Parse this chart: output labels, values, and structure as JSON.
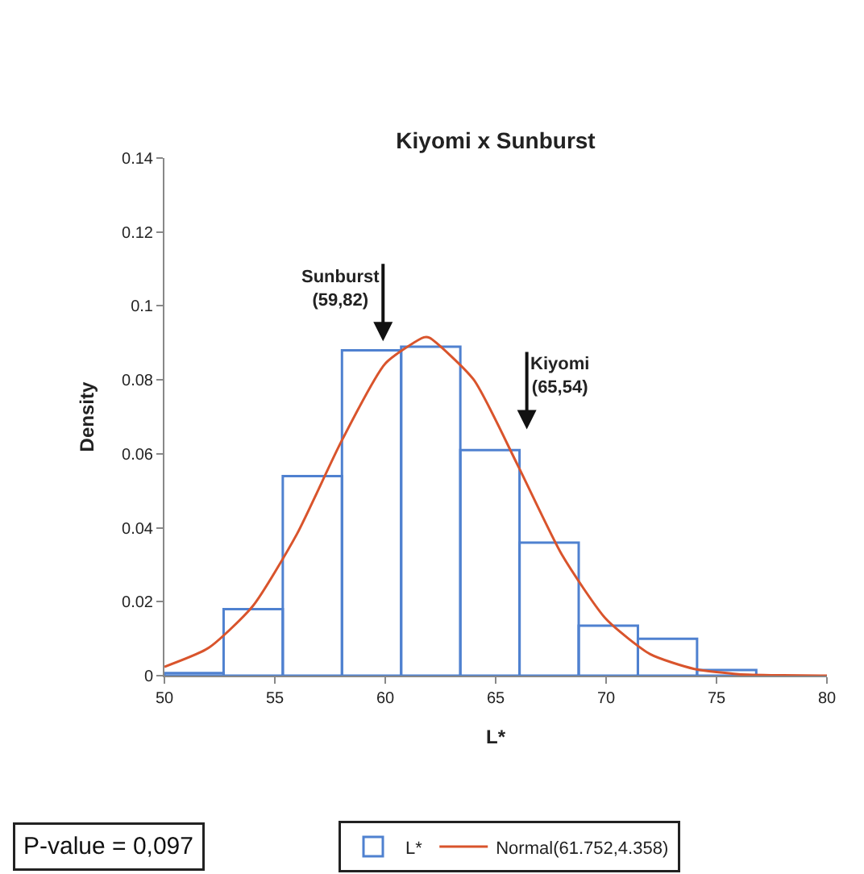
{
  "chart_data": {
    "type": "histogram",
    "title": "Kiyomi x Sunburst",
    "xlabel": "L*",
    "ylabel": "Density",
    "bins": [
      50,
      52.68,
      55.36,
      58.04,
      60.72,
      63.4,
      66.08,
      68.76,
      71.44,
      74.12,
      76.8
    ],
    "xlim": [
      50,
      80
    ],
    "xticks": [
      50,
      55,
      60,
      65,
      70,
      75,
      80
    ],
    "ylim": [
      0,
      0.14
    ],
    "yticks": [
      0,
      0.02,
      0.04,
      0.06,
      0.08,
      0.1,
      0.12,
      0.14
    ],
    "legend": "bottom",
    "series": [
      {
        "name": "L*",
        "color": "#4f81d0",
        "values": [
          0.0007,
          0.018,
          0.054,
          0.088,
          0.089,
          0.061,
          0.036,
          0.0135,
          0.01,
          0.0015
        ]
      },
      {
        "name": "Normal(61.752,4.358)",
        "type": "line",
        "color": "#d9542c",
        "x": [
          50,
          52,
          54,
          56,
          58,
          60,
          61.75,
          62,
          64,
          66,
          68,
          70,
          72,
          74,
          76,
          78,
          80
        ],
        "values": [
          0.0024,
          0.0075,
          0.0188,
          0.0383,
          0.0632,
          0.0844,
          0.0915,
          0.0914,
          0.0801,
          0.0569,
          0.0327,
          0.0153,
          0.0058,
          0.0018,
          0.0004,
          0.0001,
          0
        ]
      }
    ],
    "annotations": [
      "Sunburst\n(59,82)",
      "Kiyomi\n(65,54)",
      "P-value = 0,097"
    ]
  }
}
